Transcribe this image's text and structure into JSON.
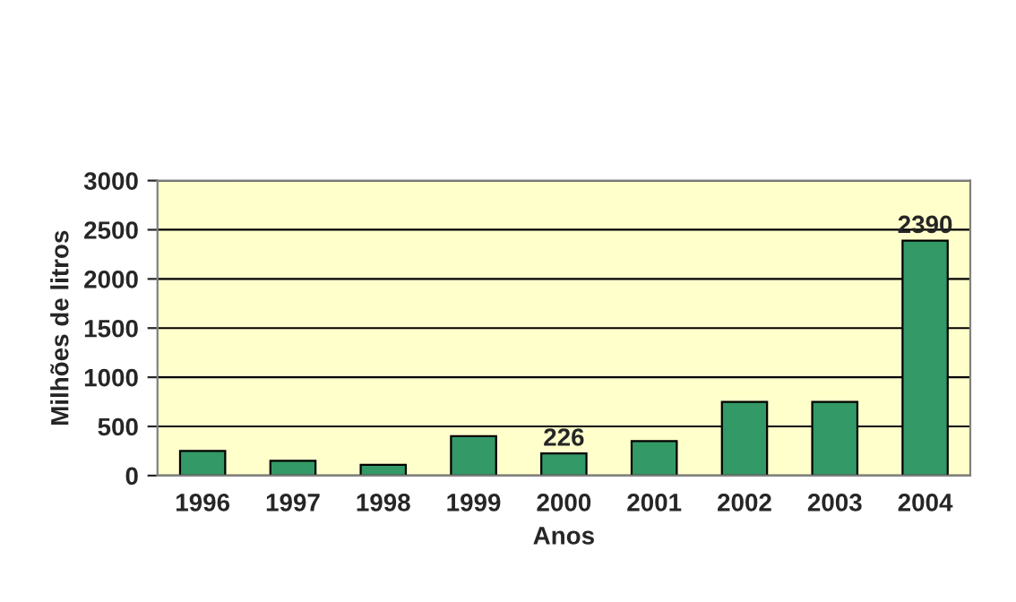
{
  "chart_data": {
    "type": "bar",
    "xlabel": "Anos",
    "ylabel": "Milhões de litros",
    "categories": [
      "1996",
      "1997",
      "1998",
      "1999",
      "2000",
      "2001",
      "2002",
      "2003",
      "2004"
    ],
    "values": [
      250,
      150,
      110,
      400,
      226,
      350,
      750,
      750,
      2390
    ],
    "value_labels": [
      null,
      null,
      null,
      null,
      "226",
      null,
      null,
      null,
      "2390"
    ],
    "color": "#339966",
    "ylim": [
      0,
      3000
    ],
    "yticks": [
      0,
      500,
      1000,
      1500,
      2000,
      2500,
      3000
    ],
    "grid": "y",
    "legend": false
  }
}
